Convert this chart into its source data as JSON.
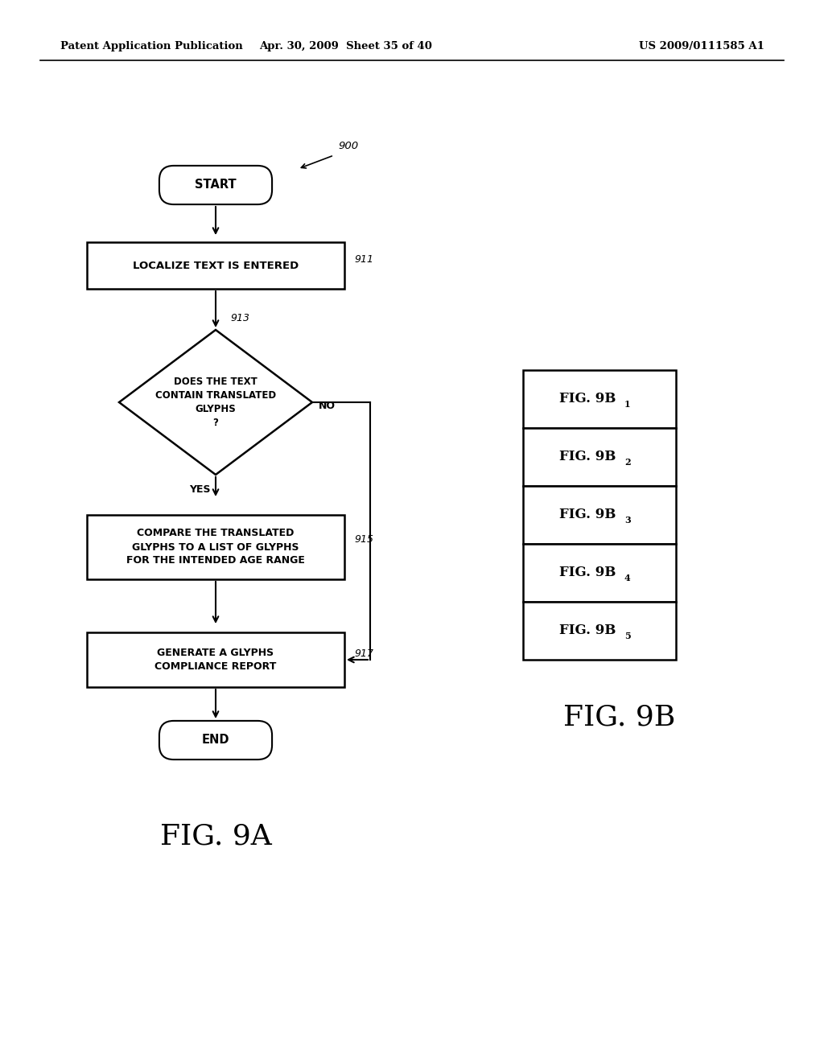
{
  "header_left": "Patent Application Publication",
  "header_mid": "Apr. 30, 2009  Sheet 35 of 40",
  "header_right": "US 2009/0111585 A1",
  "fig9a_label": "FIG. 9A",
  "fig9b_label": "FIG. 9B",
  "start_text": "START",
  "end_text": "END",
  "box911_text": "LOCALIZE TEXT IS ENTERED",
  "box911_label": "911",
  "diamond913_text": "DOES THE TEXT\nCONTAIN TRANSLATED\nGLYPHS\n?",
  "diamond913_label": "913",
  "box915_text": "COMPARE THE TRANSLATED\nGLYPHS TO A LIST OF GLYPHS\nFOR THE INTENDED AGE RANGE",
  "box915_label": "915",
  "box917_text": "GENERATE A GLYPHS\nCOMPLIANCE REPORT",
  "box917_label": "917",
  "label900": "900",
  "yes_text": "YES",
  "no_text": "NO",
  "fig9b_subs": [
    "1",
    "2",
    "3",
    "4",
    "5"
  ],
  "bg_color": "#ffffff",
  "line_color": "#000000",
  "text_color": "#000000"
}
